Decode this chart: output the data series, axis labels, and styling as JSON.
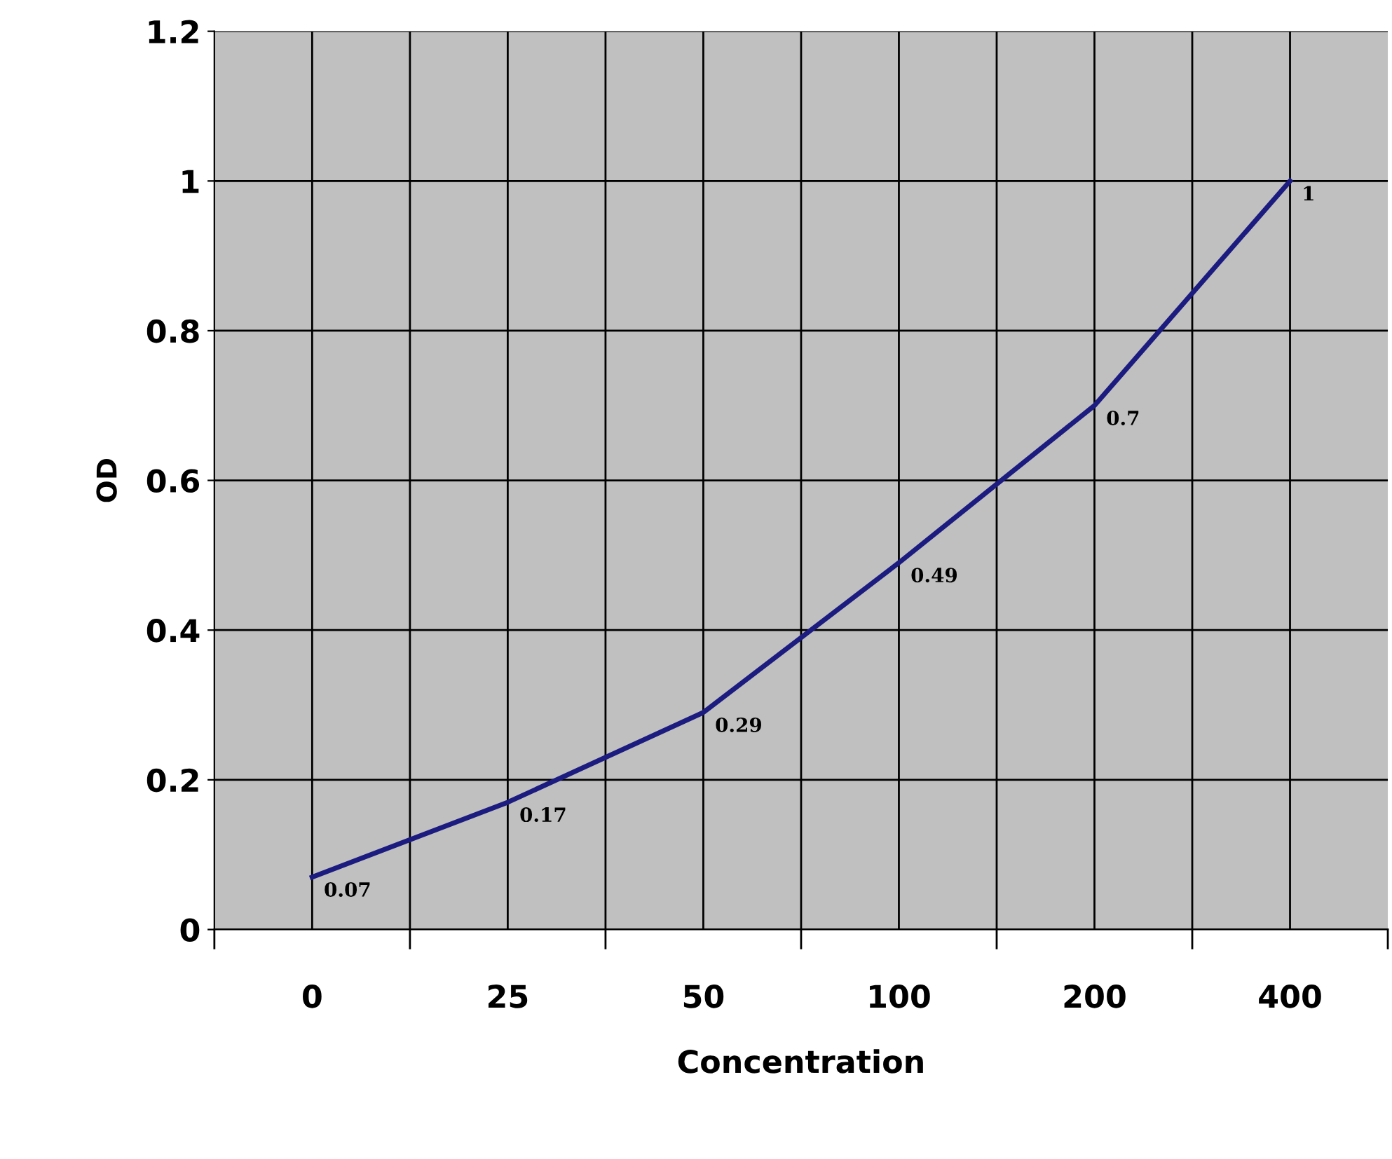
{
  "chart_data": {
    "type": "line",
    "xlabel": "Concentration",
    "ylabel": "OD",
    "categories": [
      "0",
      "25",
      "50",
      "100",
      "200",
      "400"
    ],
    "series": [
      {
        "color": "#1c1c80",
        "values": [
          0.07,
          0.17,
          0.29,
          0.49,
          0.7,
          1
        ]
      }
    ],
    "ylim": [
      0,
      1.2
    ],
    "yticks": [
      0,
      0.2,
      0.4,
      0.6,
      0.8,
      1,
      1.2
    ],
    "grid": true,
    "data_labels": true,
    "marker": "none",
    "line_style": "solid"
  }
}
